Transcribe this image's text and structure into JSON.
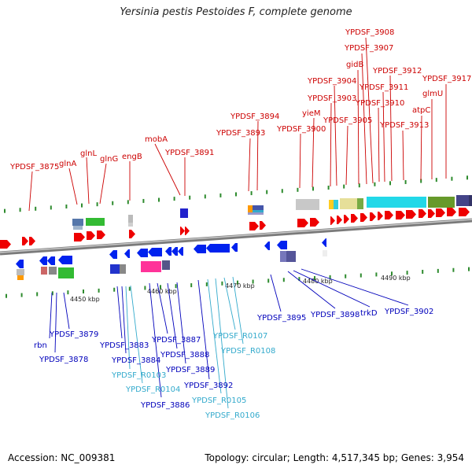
{
  "title": "Yersinia pestis Pestoides F, complete genome",
  "footer": {
    "accession": "Accession: NC_009381",
    "topology": "Topology: circular; Length: 4,517,345 bp; Genes: 3,954"
  },
  "colors": {
    "forward_label": "#cc0000",
    "reverse_label": "#0000bb",
    "rna_label": "#33aacc",
    "forward_arrow": "#ee0000",
    "reverse_arrow": "#0022ee",
    "backbone": "#909090"
  },
  "scale": [
    "4450 kbp",
    "4460 kbp",
    "4470 kbp",
    "4480 kbp",
    "4490 kbp"
  ],
  "top_labels": [
    "YPDSF_3875",
    "glnA",
    "glnL",
    "glnG",
    "engB",
    "mobA",
    "YPDSF_3891",
    "YPDSF_3893",
    "YPDSF_3894",
    "YPDSF_3900",
    "yieM",
    "YPDSF_3903",
    "YPDSF_3904",
    "YPDSF_3905",
    "gidB",
    "YPDSF_3907",
    "YPDSF_3908",
    "YPDSF_3910",
    "YPDSF_3911",
    "YPDSF_3912",
    "YPDSF_3913",
    "atpC",
    "glmU",
    "YPDSF_3917"
  ],
  "bottom_labels": [
    "rbn",
    "YPDSF_3878",
    "YPDSF_3879",
    "YPDSF_3883",
    "YPDSF_3884",
    "YPDSF_R0103",
    "YPDSF_R0104",
    "YPDSF_3886",
    "YPDSF_3887",
    "YPDSF_3888",
    "YPDSF_3889",
    "YPDSF_3892",
    "YPDSF_R0105",
    "YPDSF_R0106",
    "YPDSF_R0107",
    "YPDSF_R0108",
    "YPDSF_3895",
    "YPDSF_3898",
    "trkD",
    "YPDSF_3902"
  ]
}
